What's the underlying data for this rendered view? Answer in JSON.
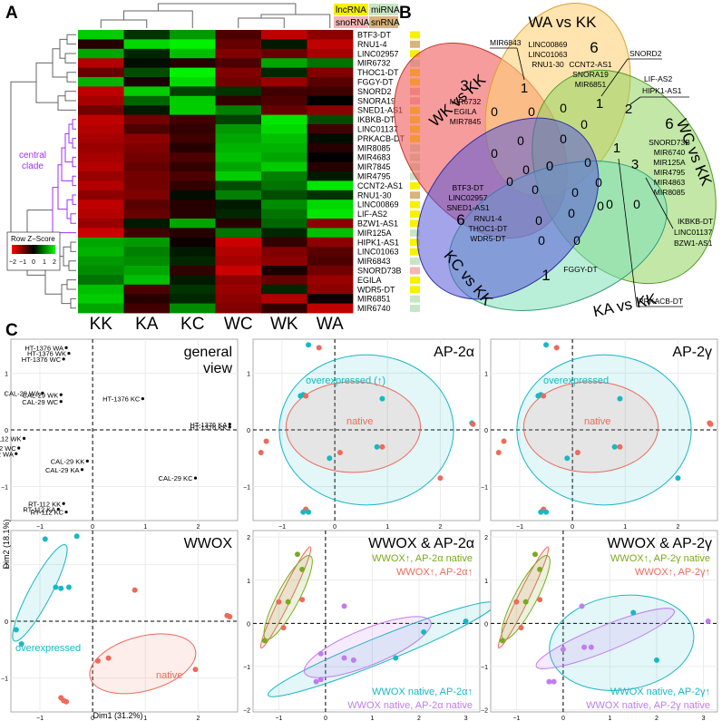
{
  "panels": {
    "a": "A",
    "b": "B",
    "c": "C"
  },
  "heatmap": {
    "columns": [
      "KK",
      "KA",
      "KC",
      "WC",
      "WK",
      "WA"
    ],
    "rows": [
      {
        "label": "BTF3-DT",
        "type": "lncRNA",
        "z": [
          1.6,
          0.4,
          1.2,
          -0.6,
          -1.5,
          -1.1
        ]
      },
      {
        "label": "RNU1-4",
        "type": "snRNA",
        "z": [
          -0.3,
          1.7,
          1.9,
          -0.8,
          0.2,
          -1.5
        ]
      },
      {
        "label": "LINC02957",
        "type": "lncRNA",
        "z": [
          1.3,
          0.3,
          1.5,
          -1.0,
          -0.8,
          -1.3
        ]
      },
      {
        "label": "MIR6732",
        "type": "miRNA",
        "z": [
          -1.4,
          0.1,
          -0.3,
          -0.6,
          1.3,
          0.9
        ]
      },
      {
        "label": "THOC1-DT",
        "type": "lncRNA",
        "z": [
          -0.8,
          0.6,
          1.9,
          -1.0,
          0.3,
          -1.0
        ]
      },
      {
        "label": "FGGY-DT",
        "type": "lncRNA",
        "z": [
          1.4,
          -0.2,
          1.7,
          -0.9,
          -1.2,
          -0.7
        ]
      },
      {
        "label": "SNORD2",
        "type": "snoRNA",
        "z": [
          -1.5,
          1.6,
          0.5,
          0.4,
          -0.5,
          -0.5
        ]
      },
      {
        "label": "SNORA19",
        "type": "snoRNA",
        "z": [
          -1.3,
          0.8,
          1.6,
          -0.4,
          -0.6,
          0.0
        ]
      },
      {
        "label": "SNED1-AS1",
        "type": "lncRNA",
        "z": [
          -0.9,
          0.2,
          1.6,
          1.0,
          -0.8,
          -1.1
        ]
      },
      {
        "label": "IKBKB-DT",
        "type": "lncRNA",
        "z": [
          -1.5,
          -0.9,
          -0.5,
          0.5,
          1.8,
          0.6
        ]
      },
      {
        "label": "LINC01137",
        "type": "lncRNA",
        "z": [
          -1.4,
          -0.6,
          -0.4,
          1.2,
          1.7,
          -0.5
        ]
      },
      {
        "label": "PRKACB-DT",
        "type": "lncRNA",
        "z": [
          -1.3,
          -1.1,
          -0.5,
          1.3,
          1.5,
          0.1
        ]
      },
      {
        "label": "MIR8085",
        "type": "miRNA",
        "z": [
          -1.2,
          -1.0,
          -0.3,
          1.4,
          1.4,
          -0.3
        ]
      },
      {
        "label": "MIR4683",
        "type": "miRNA",
        "z": [
          -1.3,
          -0.9,
          -0.6,
          1.5,
          1.3,
          0.0
        ]
      },
      {
        "label": "MIR7845",
        "type": "miRNA",
        "z": [
          -1.4,
          -0.8,
          -0.4,
          1.3,
          1.6,
          -0.3
        ]
      },
      {
        "label": "MIR4795",
        "type": "miRNA",
        "z": [
          -1.2,
          -0.9,
          -0.6,
          1.6,
          1.0,
          0.2
        ]
      },
      {
        "label": "CCNT2-AS1",
        "type": "lncRNA",
        "z": [
          -1.4,
          -0.9,
          -0.4,
          0.6,
          0.9,
          1.8
        ]
      },
      {
        "label": "RNU1-30",
        "type": "snRNA",
        "z": [
          -1.1,
          -1.0,
          0.1,
          1.0,
          0.6,
          0.4
        ]
      },
      {
        "label": "LINC00869",
        "type": "lncRNA",
        "z": [
          -1.5,
          -0.7,
          -0.3,
          0.2,
          1.1,
          1.7
        ]
      },
      {
        "label": "LIF-AS2",
        "type": "lncRNA",
        "z": [
          -1.4,
          -0.8,
          -0.3,
          0.3,
          0.9,
          1.8
        ]
      },
      {
        "label": "BZW1-AS1",
        "type": "lncRNA",
        "z": [
          -1.2,
          0.2,
          1.3,
          -0.3,
          0.8,
          -1.1
        ]
      },
      {
        "label": "MIR125A",
        "type": "miRNA",
        "z": [
          -1.6,
          -0.5,
          -0.3,
          0.9,
          0.3,
          1.5
        ]
      },
      {
        "label": "HIPK1-AS1",
        "type": "lncRNA",
        "z": [
          1.3,
          1.2,
          -0.1,
          -1.6,
          -0.4,
          -1.1
        ]
      },
      {
        "label": "LINC01063",
        "type": "lncRNA",
        "z": [
          1.4,
          1.0,
          0.2,
          -1.4,
          -1.0,
          -0.7
        ]
      },
      {
        "label": "MIR6843",
        "type": "miRNA",
        "z": [
          1.2,
          1.1,
          0.3,
          -1.3,
          -1.1,
          -0.6
        ]
      },
      {
        "label": "SNORD73B",
        "type": "snoRNA",
        "z": [
          1.1,
          1.3,
          -0.4,
          -1.6,
          -0.2,
          -0.9
        ]
      },
      {
        "label": "EGILA",
        "type": "lncRNA",
        "z": [
          0.9,
          1.5,
          0.2,
          -1.1,
          -0.8,
          -1.2
        ]
      },
      {
        "label": "WDR5-DT",
        "type": "lncRNA",
        "z": [
          1.5,
          -0.6,
          0.4,
          -1.2,
          0.3,
          -1.1
        ]
      },
      {
        "label": "MIR6851",
        "type": "miRNA",
        "z": [
          1.6,
          -0.3,
          0.3,
          -1.1,
          -1.4,
          -0.1
        ]
      },
      {
        "label": "MIR6740",
        "type": "miRNA",
        "z": [
          1.3,
          -0.5,
          1.1,
          -1.0,
          -0.4,
          -1.5
        ]
      }
    ],
    "legend_title": "Row Z−Score",
    "legend_ticks": [
      "−2",
      "−1",
      "0",
      "1",
      "2"
    ],
    "clade_label": [
      "central",
      "clade"
    ],
    "type_legend": {
      "lncRNA": "lncRNA",
      "miRNA": "miRNA",
      "snoRNA": "snoRNA",
      "snRNA": "snRNA"
    }
  },
  "colors": {
    "lncRNA": "#f7f100",
    "miRNA": "#c8e6c4",
    "snoRNA": "#f3b6b3",
    "snRNA": "#d9b37a",
    "clade": "#9b30ff",
    "teal": "#18b8c4",
    "salmon": "#ee6a5a",
    "olive": "#7aaa1c",
    "violet": "#c07cf0"
  },
  "venn": {
    "sets": [
      {
        "name": "WK vs KK",
        "count": "3",
        "genes": [
          "MIR6732",
          "EGILA",
          "MIR7845"
        ]
      },
      {
        "name": "WA vs KK",
        "count": "6",
        "genes": [
          "LINC00869",
          "LINC01063",
          "RNU1-30",
          "CCNT2-AS1",
          "SNORA19",
          "MIR6851"
        ]
      },
      {
        "name": "WC vs KK",
        "count": "6",
        "genes": [
          "SNORD73B",
          "MIR6740",
          "MIR125A",
          "MIR4795",
          "MIR4863",
          "MIR8085"
        ]
      },
      {
        "name": "KA vs KK",
        "count": "1",
        "genes": [
          "FGGY-DT"
        ]
      },
      {
        "name": "KC vs KK",
        "count": "6",
        "genes": [
          "BTF3-DT",
          "LINC02957",
          "SNED1-AS1",
          "RNU1-4",
          "THOC1-DT",
          "WDR5-DT"
        ]
      }
    ],
    "callouts": {
      "wk_wa": "MIR6843",
      "wa_wc": "SNORD2",
      "wa_wc2": [
        "LIF-AS2",
        "HIPK1-AS1"
      ],
      "wc_ka": [
        "IKBKB-DT",
        "LINC01137",
        "BZW1-AS1"
      ],
      "ka_wc": "PRKACB-DT"
    },
    "region_counts": {
      "wk_wa": "1",
      "wa_wc": "1",
      "wa_wc2": "2",
      "wc_ka": "3",
      "center": "0",
      "inner_one": "1"
    }
  },
  "pca": {
    "x_axis_label": "Dim1 (31.2%)",
    "y_axis_label": "Dim2 (18.1%)",
    "plots": [
      {
        "id": "general",
        "title": [
          "general",
          "view"
        ],
        "points": [
          {
            "label": "HT-1376 WA",
            "x": -0.5,
            "y": 1.45
          },
          {
            "label": "HT-1376 WK",
            "x": -0.45,
            "y": 1.35
          },
          {
            "label": "HT-1376 WC",
            "x": -0.55,
            "y": 1.25
          },
          {
            "label": "CAL-29 WA",
            "x": -0.95,
            "y": 0.65
          },
          {
            "label": "CAL-29 WK",
            "x": -0.6,
            "y": 0.62
          },
          {
            "label": "CAL-29 WC",
            "x": -0.6,
            "y": 0.5
          },
          {
            "label": "HT-1376 KC",
            "x": 0.95,
            "y": 0.55
          },
          {
            "label": "HT-1376 KA",
            "x": 2.6,
            "y": 0.1
          },
          {
            "label": "HT-1376 KK",
            "x": 2.6,
            "y": 0.05
          },
          {
            "label": "RT-112 WK",
            "x": -1.3,
            "y": -0.15
          },
          {
            "label": "RT-112 WC",
            "x": -1.4,
            "y": -0.32
          },
          {
            "label": "RT-112 WA",
            "x": -1.45,
            "y": -0.42
          },
          {
            "label": "CAL-29 KK",
            "x": -0.1,
            "y": -0.55
          },
          {
            "label": "CAL-29 KA",
            "x": -0.2,
            "y": -0.7
          },
          {
            "label": "CAL-29 KC",
            "x": 1.95,
            "y": -0.85
          },
          {
            "label": "RT-112 KK",
            "x": -0.55,
            "y": -1.3
          },
          {
            "label": "RT-112 KA",
            "x": -0.65,
            "y": -1.4
          },
          {
            "label": "RT-112 KC",
            "x": -0.5,
            "y": -1.45
          }
        ]
      },
      {
        "id": "ap2a",
        "title": [
          "AP-2α"
        ],
        "legend": [
          {
            "text": "overexpressed (↑)",
            "color": "teal"
          },
          {
            "text": "native",
            "color": "salmon"
          }
        ]
      },
      {
        "id": "ap2g",
        "title": [
          "AP-2γ"
        ],
        "legend": [
          {
            "text": "overexpressed",
            "color": "teal"
          },
          {
            "text": "native",
            "color": "salmon"
          }
        ]
      },
      {
        "id": "wwox",
        "title": [
          "WWOX"
        ],
        "legend": [
          {
            "text": "overexpressed",
            "color": "teal"
          },
          {
            "text": "native",
            "color": "salmon"
          }
        ]
      },
      {
        "id": "wwox_ap2a",
        "title": [
          "WWOX & AP-2α"
        ],
        "legend": [
          {
            "text": "WWOX↑, AP-2α native",
            "color": "olive"
          },
          {
            "text": "WWOX↑, AP-2α↑",
            "color": "salmon"
          },
          {
            "text": "WWOX native, AP-2α↑",
            "color": "teal"
          },
          {
            "text": "WWOX native, AP-2α native",
            "color": "violet"
          }
        ]
      },
      {
        "id": "wwox_ap2g",
        "title": [
          "WWOX & AP-2γ"
        ],
        "legend": [
          {
            "text": "WWOX↑, AP-2γ native",
            "color": "olive"
          },
          {
            "text": "WWOX↑, AP-2γ↑",
            "color": "salmon"
          },
          {
            "text": "WWOX native, AP-2γ↑",
            "color": "teal"
          },
          {
            "text": "WWOX native, AP-2γ native",
            "color": "violet"
          }
        ]
      }
    ]
  }
}
